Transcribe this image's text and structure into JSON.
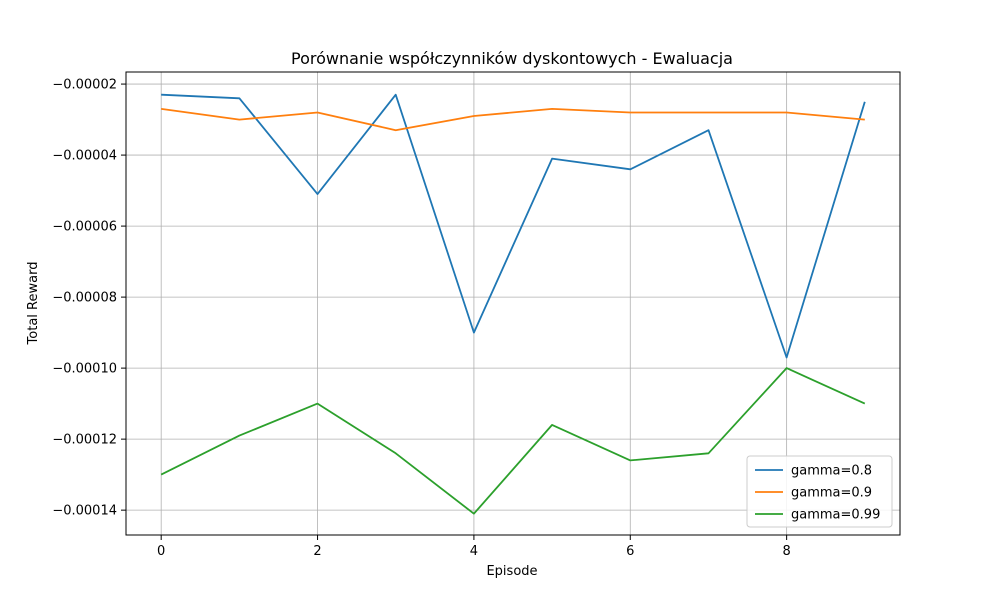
{
  "chart_data": {
    "type": "line",
    "title": "Porównanie współczynników dyskontowych - Ewaluacja",
    "xlabel": "Episode",
    "ylabel": "Total Reward",
    "x": [
      0,
      1,
      2,
      3,
      4,
      5,
      6,
      7,
      8,
      9
    ],
    "xlim": [
      -0.45,
      9.45
    ],
    "ylim": [
      -0.000147,
      -1.66e-05
    ],
    "xticks": [
      0,
      2,
      4,
      6,
      8
    ],
    "xtick_labels": [
      "0",
      "2",
      "4",
      "6",
      "8"
    ],
    "yticks": [
      -2e-05,
      -4e-05,
      -6e-05,
      -8e-05,
      -0.0001,
      -0.00012,
      -0.00014
    ],
    "ytick_labels": [
      "−0.00002",
      "−0.00004",
      "−0.00006",
      "−0.00008",
      "−0.00010",
      "−0.00012",
      "−0.00014"
    ],
    "grid": true,
    "legend_position": "lower-right",
    "series": [
      {
        "name": "gamma=0.8",
        "color": "#1f77b4",
        "values": [
          -2.3e-05,
          -2.4e-05,
          -5.1e-05,
          -2.3e-05,
          -9e-05,
          -4.1e-05,
          -4.4e-05,
          -3.3e-05,
          -9.7e-05,
          -2.5e-05
        ]
      },
      {
        "name": "gamma=0.9",
        "color": "#ff7f0e",
        "values": [
          -2.7e-05,
          -3e-05,
          -2.8e-05,
          -3.3e-05,
          -2.9e-05,
          -2.7e-05,
          -2.8e-05,
          -2.8e-05,
          -2.8e-05,
          -3e-05
        ]
      },
      {
        "name": "gamma=0.99",
        "color": "#2ca02c",
        "values": [
          -0.00013,
          -0.000119,
          -0.00011,
          -0.000124,
          -0.000141,
          -0.000116,
          -0.000126,
          -0.000124,
          -0.0001,
          -0.00011
        ]
      }
    ]
  }
}
